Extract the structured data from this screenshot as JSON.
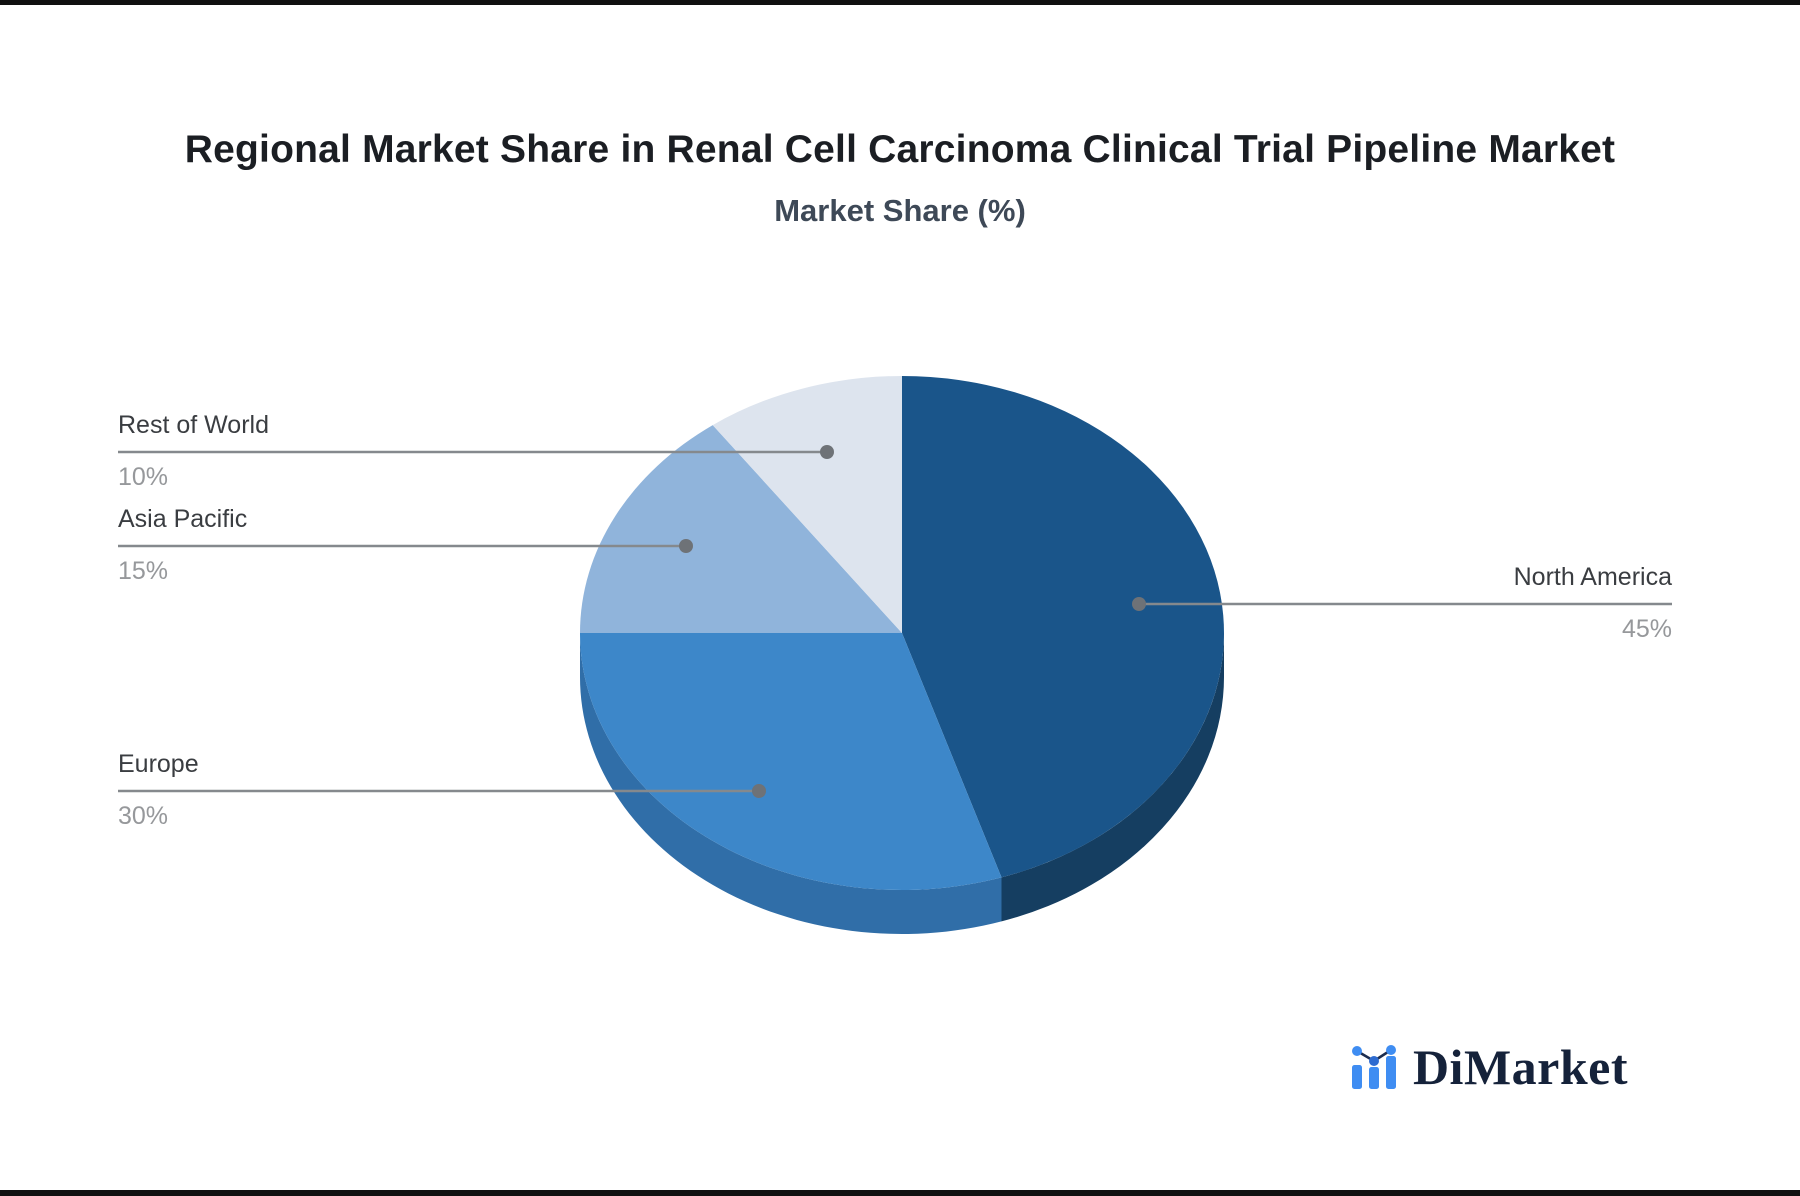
{
  "header": {
    "title": "Regional Market Share in Renal Cell Carcinoma Clinical Trial Pipeline Market",
    "subtitle": "Market Share (%)"
  },
  "chart_data": {
    "type": "pie",
    "title": "Regional Market Share in Renal Cell Carcinoma Clinical Trial Pipeline Market",
    "subtitle": "Market Share (%)",
    "unit": "percent",
    "start_angle_deg": 0,
    "direction": "clockwise",
    "effect": "3d-depth",
    "legend_position": "none",
    "categories": [
      "North America",
      "Europe",
      "Asia Pacific",
      "Rest of World"
    ],
    "values": [
      45,
      30,
      15,
      10
    ],
    "colors": [
      "#1a558a",
      "#3d87c9",
      "#90b4db",
      "#dde4ee"
    ],
    "depth_colors": [
      "#153e61",
      "#306ea8",
      "#6d94bd",
      "#b9c4d4"
    ],
    "labels": [
      {
        "name": "North America",
        "value_label": "45%",
        "side": "right"
      },
      {
        "name": "Europe",
        "value_label": "30%",
        "side": "left"
      },
      {
        "name": "Asia Pacific",
        "value_label": "15%",
        "side": "left"
      },
      {
        "name": "Rest of World",
        "value_label": "10%",
        "side": "left"
      }
    ],
    "leader_line_color": "#85898d",
    "leader_dot_color": "#6e7277"
  },
  "logo": {
    "text": "DiMarket",
    "icon": "bar-line-chart-icon",
    "text_color": "#15223a",
    "icon_color": "#3f8df2"
  }
}
